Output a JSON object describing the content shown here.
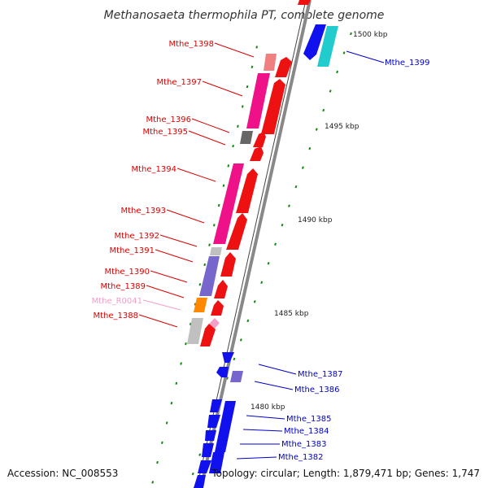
{
  "map": {
    "title": "Methanosaeta thermophila PT, complete genome",
    "accession": "Accession: NC_008553",
    "topology": "Topology: circular; Length: 1,879,471 bp; Genes: 1,747"
  },
  "colors": {
    "forward_label": "#dd0000",
    "reverse_label": "#0000cc",
    "rna_label": "#f2a0c8",
    "forward_arrow": "#ee1111",
    "reverse_arrow": "#1111ee",
    "backbone": "#888888",
    "tick": "#118811"
  },
  "kbp_ticks": [
    {
      "label": "1500 kbp",
      "pos": 1500
    },
    {
      "label": "1495 kbp",
      "pos": 1495
    },
    {
      "label": "1490 kbp",
      "pos": 1490
    },
    {
      "label": "1485 kbp",
      "pos": 1485
    },
    {
      "label": "1480 kbp",
      "pos": 1480
    }
  ],
  "genes": [
    {
      "name": "Mthe_1398",
      "strand": "forward",
      "cog_color": "#f08080"
    },
    {
      "name": "Mthe_1397",
      "strand": "forward",
      "cog_color": "#ee1188"
    },
    {
      "name": "Mthe_1396",
      "strand": "forward",
      "cog_color": "#666666"
    },
    {
      "name": "Mthe_1395",
      "strand": "forward",
      "cog_color": "#ee1111"
    },
    {
      "name": "Mthe_1394",
      "strand": "forward",
      "cog_color": "#ee1188"
    },
    {
      "name": "Mthe_1393",
      "strand": "forward",
      "cog_color": "#ee1188"
    },
    {
      "name": "Mthe_1392",
      "strand": "forward",
      "cog_color": "#c0c0c0"
    },
    {
      "name": "Mthe_1391",
      "strand": "forward",
      "cog_color": "#7766cc"
    },
    {
      "name": "Mthe_1390",
      "strand": "forward",
      "cog_color": "#7766cc"
    },
    {
      "name": "Mthe_1389",
      "strand": "forward",
      "cog_color": "#ff8800"
    },
    {
      "name": "Mthe_R0041",
      "strand": "rna",
      "cog_color": "#f2a0c8"
    },
    {
      "name": "Mthe_1388",
      "strand": "forward",
      "cog_color": "#c0c0c0"
    },
    {
      "name": "Mthe_1399",
      "strand": "reverse",
      "cog_color": "#22cccc"
    },
    {
      "name": "Mthe_1387",
      "strand": "reverse",
      "cog_color": "#1111ee"
    },
    {
      "name": "Mthe_1386",
      "strand": "reverse",
      "cog_color": "#7766cc"
    },
    {
      "name": "Mthe_1385",
      "strand": "reverse",
      "cog_color": "#1111ee"
    },
    {
      "name": "Mthe_1384",
      "strand": "reverse",
      "cog_color": "#1111ee"
    },
    {
      "name": "Mthe_1383",
      "strand": "reverse",
      "cog_color": "#1111ee"
    },
    {
      "name": "Mthe_1382",
      "strand": "reverse",
      "cog_color": "#1111ee"
    }
  ]
}
